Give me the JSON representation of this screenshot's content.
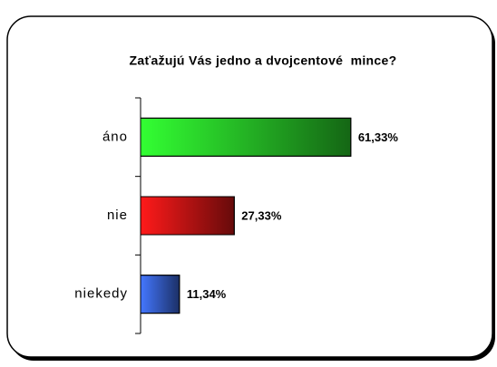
{
  "chart_data": {
    "type": "hbar",
    "title": "Zaťažujú Vás jedno a dvojcentové  mince?",
    "categories": [
      "áno",
      "nie",
      "niekedy"
    ],
    "values": [
      61.33,
      27.33,
      11.34
    ],
    "value_labels": [
      "61,33%",
      "27,33%",
      "11,34%"
    ],
    "colors": [
      "#33ff33",
      "#ff1a1a",
      "#4477ff"
    ]
  }
}
